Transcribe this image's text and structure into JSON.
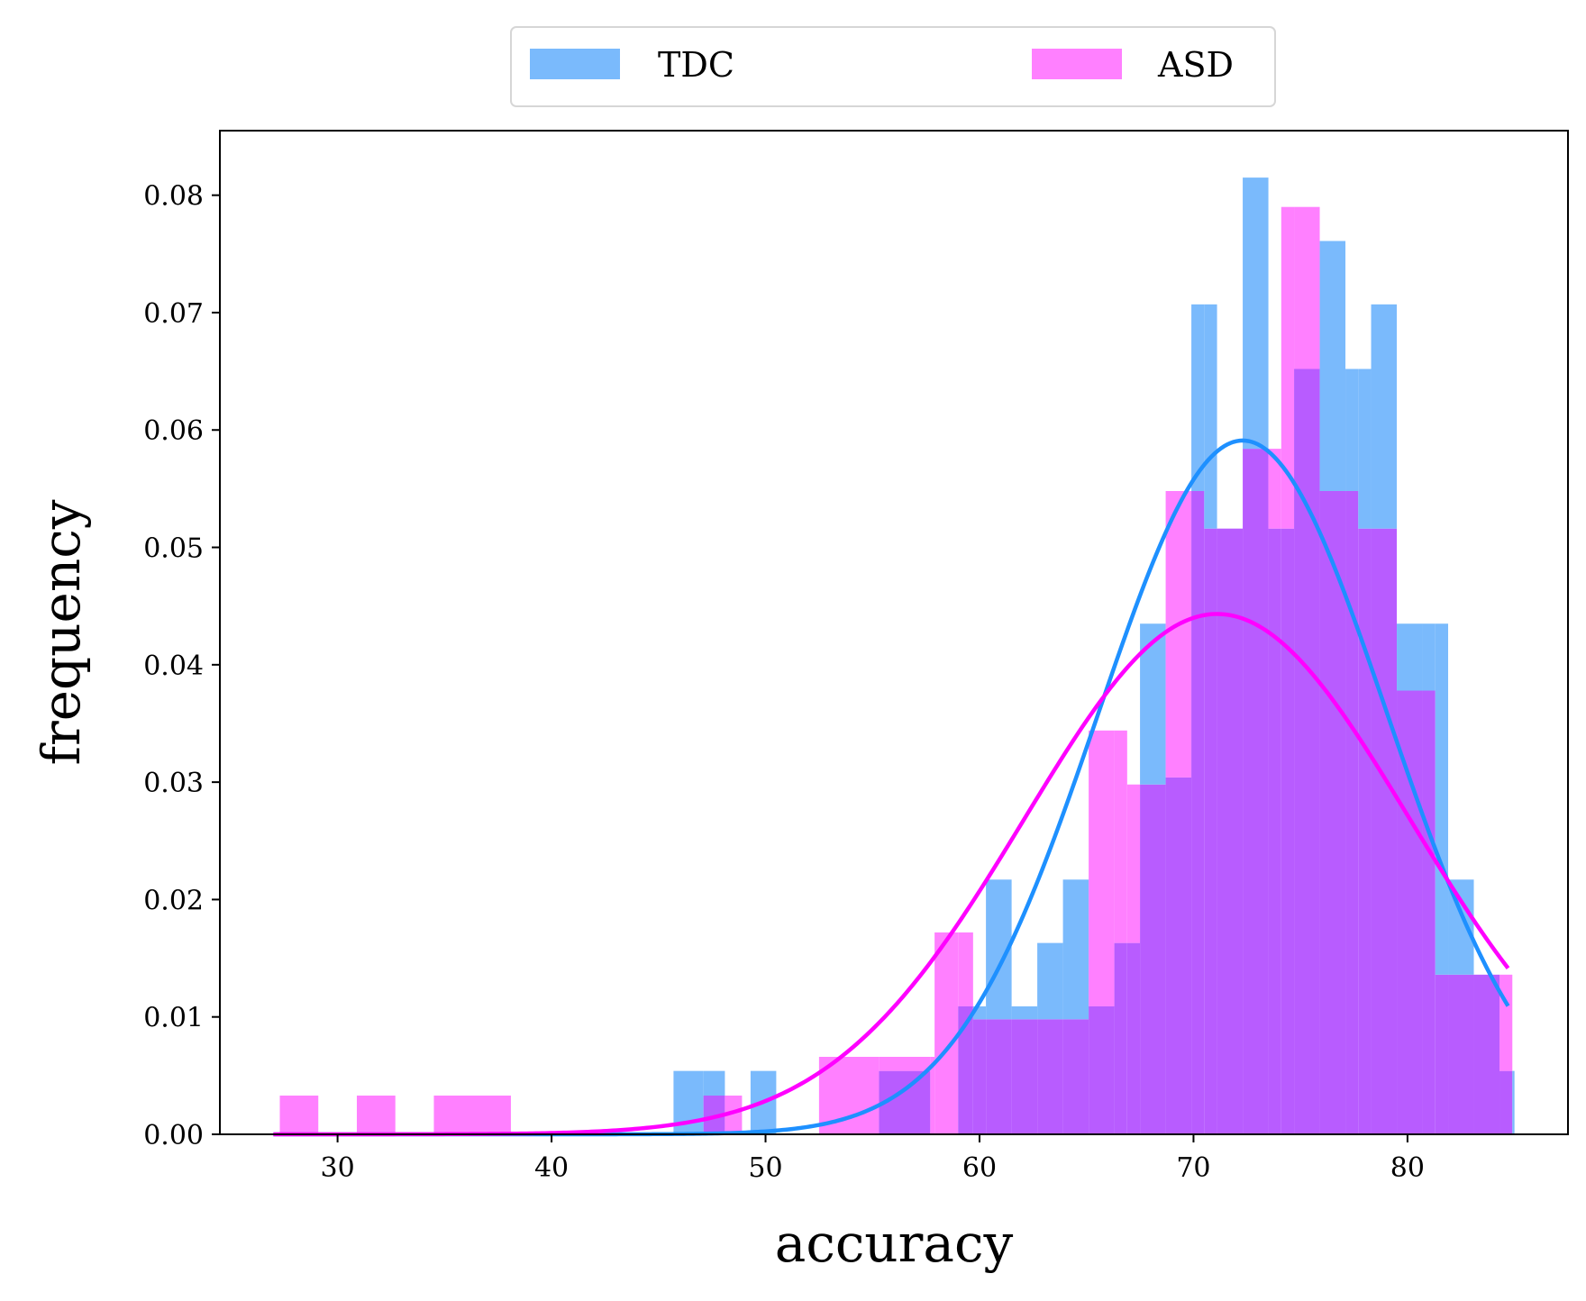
{
  "chart_data": {
    "type": "histogram",
    "xlabel": "accuracy",
    "ylabel": "frequency",
    "xlim": [
      24.5,
      87.5
    ],
    "ylim": [
      0,
      0.0855
    ],
    "xticks": [
      30,
      40,
      50,
      60,
      70,
      80
    ],
    "yticks": [
      0.0,
      0.01,
      0.02,
      0.03,
      0.04,
      0.05,
      0.06,
      0.07,
      0.08
    ],
    "ytick_labels": [
      "0.00",
      "0.01",
      "0.02",
      "0.03",
      "0.04",
      "0.05",
      "0.06",
      "0.07",
      "0.08"
    ],
    "legend": {
      "placement": "top-center, above axes",
      "columns": 2
    },
    "overlap_color": "#b85cff",
    "series": [
      {
        "name": "TDC",
        "color": "#1E90FF",
        "fill_color": "#7ABAFC",
        "bins": [
          {
            "x0": 45.7,
            "x1": 48.1,
            "y": 0.0054
          },
          {
            "x0": 49.3,
            "x1": 50.5,
            "y": 0.0054
          },
          {
            "x0": 55.3,
            "x1": 57.7,
            "y": 0.0054
          },
          {
            "x0": 57.7,
            "x1": 59.0,
            "y": 0.0
          },
          {
            "x0": 59.0,
            "x1": 60.3,
            "y": 0.0109
          },
          {
            "x0": 60.3,
            "x1": 61.5,
            "y": 0.0217
          },
          {
            "x0": 61.5,
            "x1": 62.7,
            "y": 0.0109
          },
          {
            "x0": 62.7,
            "x1": 63.9,
            "y": 0.0163
          },
          {
            "x0": 63.9,
            "x1": 65.1,
            "y": 0.0217
          },
          {
            "x0": 65.1,
            "x1": 66.3,
            "y": 0.0109
          },
          {
            "x0": 66.3,
            "x1": 67.5,
            "y": 0.0163
          },
          {
            "x0": 67.5,
            "x1": 68.7,
            "y": 0.0435
          },
          {
            "x0": 68.7,
            "x1": 69.9,
            "y": 0.0304
          },
          {
            "x0": 69.9,
            "x1": 71.1,
            "y": 0.0707
          },
          {
            "x0": 71.1,
            "x1": 72.3,
            "y": 0.0516
          },
          {
            "x0": 72.3,
            "x1": 73.5,
            "y": 0.0815
          },
          {
            "x0": 73.5,
            "x1": 74.7,
            "y": 0.0516
          },
          {
            "x0": 74.7,
            "x1": 75.9,
            "y": 0.0652
          },
          {
            "x0": 75.9,
            "x1": 77.1,
            "y": 0.0761
          },
          {
            "x0": 77.1,
            "x1": 78.3,
            "y": 0.0652
          },
          {
            "x0": 78.3,
            "x1": 79.5,
            "y": 0.0707
          },
          {
            "x0": 79.5,
            "x1": 80.7,
            "y": 0.0435
          },
          {
            "x0": 80.7,
            "x1": 81.9,
            "y": 0.0435
          },
          {
            "x0": 81.9,
            "x1": 83.1,
            "y": 0.0217
          },
          {
            "x0": 83.1,
            "x1": 84.3,
            "y": 0.0136
          },
          {
            "x0": 84.3,
            "x1": 85.0,
            "y": 0.0054
          }
        ],
        "fit": {
          "type": "normal",
          "mean": 72.3,
          "std": 6.75
        }
      },
      {
        "name": "ASD",
        "color": "#FF00FF",
        "fill_color": "#FF80FF",
        "bins": [
          {
            "x0": 27.3,
            "x1": 29.1,
            "y": 0.0033
          },
          {
            "x0": 30.9,
            "x1": 32.7,
            "y": 0.0033
          },
          {
            "x0": 34.5,
            "x1": 38.1,
            "y": 0.0033
          },
          {
            "x0": 47.1,
            "x1": 48.9,
            "y": 0.0033
          },
          {
            "x0": 52.5,
            "x1": 55.3,
            "y": 0.0066
          },
          {
            "x0": 55.3,
            "x1": 57.9,
            "y": 0.0066
          },
          {
            "x0": 57.9,
            "x1": 59.7,
            "y": 0.0172
          },
          {
            "x0": 59.7,
            "x1": 65.1,
            "y": 0.0098
          },
          {
            "x0": 65.1,
            "x1": 66.9,
            "y": 0.0344
          },
          {
            "x0": 66.9,
            "x1": 68.7,
            "y": 0.0298
          },
          {
            "x0": 68.7,
            "x1": 70.5,
            "y": 0.0548
          },
          {
            "x0": 70.5,
            "x1": 72.3,
            "y": 0.0516
          },
          {
            "x0": 72.3,
            "x1": 74.1,
            "y": 0.0584
          },
          {
            "x0": 74.1,
            "x1": 75.9,
            "y": 0.079
          },
          {
            "x0": 75.9,
            "x1": 77.7,
            "y": 0.0548
          },
          {
            "x0": 77.7,
            "x1": 79.5,
            "y": 0.0516
          },
          {
            "x0": 79.5,
            "x1": 81.3,
            "y": 0.0378
          },
          {
            "x0": 81.3,
            "x1": 83.1,
            "y": 0.0136
          },
          {
            "x0": 83.1,
            "x1": 84.9,
            "y": 0.0136
          }
        ],
        "fit": {
          "type": "normal",
          "mean": 71.1,
          "std": 9.0
        }
      }
    ]
  }
}
